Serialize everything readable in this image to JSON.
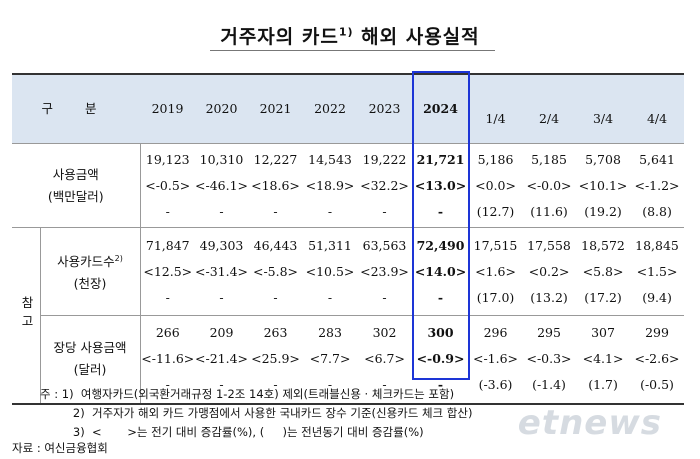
{
  "title": {
    "text": "거주자의 카드",
    "sup": "1)",
    "rest": " 해외 사용실적"
  },
  "header": {
    "label": "구 분",
    "years": [
      "2019",
      "2020",
      "2021",
      "2022",
      "2023",
      "2024"
    ],
    "quarters": [
      "1/4",
      "2/4",
      "3/4",
      "4/4"
    ]
  },
  "rows": {
    "usage": {
      "label1": "사용금액",
      "label2": "(백만달러)",
      "values": [
        "19,123",
        "10,310",
        "12,227",
        "14,543",
        "19,222",
        "21,721",
        "5,186",
        "5,185",
        "5,708",
        "5,641"
      ],
      "growth": [
        "<-0.5>",
        "<-46.1>",
        "<18.6>",
        "<18.9>",
        "<32.2>",
        "<13.0>",
        "<0.0>",
        "<-0.0>",
        "<10.1>",
        "<-1.2>"
      ],
      "yoy": [
        "-",
        "-",
        "-",
        "-",
        "-",
        "-",
        "(12.7)",
        "(11.6)",
        "(19.2)",
        "(8.8)"
      ]
    },
    "ref_label": "참고",
    "cards": {
      "label1": "사용카드수",
      "sup": "2)",
      "label2": "(천장)",
      "values": [
        "71,847",
        "49,303",
        "46,443",
        "51,311",
        "63,563",
        "72,490",
        "17,515",
        "17,558",
        "18,572",
        "18,845"
      ],
      "growth": [
        "<12.5>",
        "<-31.4>",
        "<-5.8>",
        "<10.5>",
        "<23.9>",
        "<14.0>",
        "<1.6>",
        "<0.2>",
        "<5.8>",
        "<1.5>"
      ],
      "yoy": [
        "-",
        "-",
        "-",
        "-",
        "-",
        "-",
        "(17.0)",
        "(13.2)",
        "(17.2)",
        "(9.4)"
      ]
    },
    "per_card": {
      "label1": "장당 사용금액",
      "label2": "(달러)",
      "values": [
        "266",
        "209",
        "263",
        "283",
        "302",
        "300",
        "296",
        "295",
        "307",
        "299"
      ],
      "growth": [
        "<-11.6>",
        "<-21.4>",
        "<25.9>",
        "<7.7>",
        "<6.7>",
        "<-0.9>",
        "<-1.6>",
        "<-0.3>",
        "<4.1>",
        "<-2.6>"
      ],
      "yoy": [
        "-",
        "-",
        "-",
        "-",
        "-",
        "-",
        "(-3.6)",
        "(-1.4)",
        "(1.7)",
        "(-0.5)"
      ]
    }
  },
  "notes": [
    "주 : 1)  여행자카드(외국환거래규정 1-2조 14호) 제외(트래블신용 · 체크카드는 포함)",
    "         2)  거주자가 해외 카드 가맹점에서 사용한 국내카드 장수 기준(신용카드 체크 합산)",
    "         3)  <       >는 전기 대비 증감률(%), (     )는 전년동기 대비 증감률(%)"
  ],
  "source": "자료 : 여신금융협회",
  "watermark": "etnews",
  "colors": {
    "header_bg": "#dbe5f1",
    "highlight_border": "#1d35d6"
  }
}
